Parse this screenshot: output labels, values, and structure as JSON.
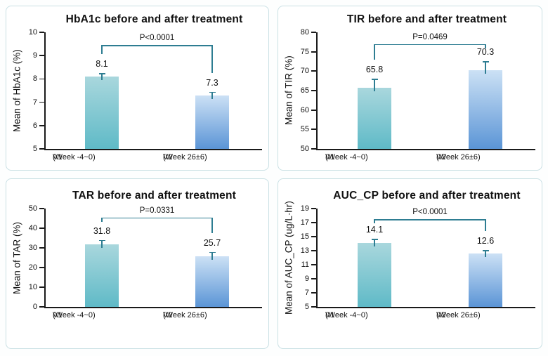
{
  "page": {
    "background": "#fdfefe"
  },
  "colors": {
    "bar_v1_gradient_top": "#a9d7dd",
    "bar_v1_gradient_bottom": "#5fbac7",
    "bar_v2_gradient_top": "#cce1f5",
    "bar_v2_gradient_bottom": "#5b95d6",
    "error_bar": "#2e7d92",
    "bracket": "#2e7d92",
    "axis": "#1a1a1a",
    "panel_border": "#c9e0e4",
    "panel_background": "#ffffff",
    "title_text": "#111111"
  },
  "categories": [
    {
      "label": "V1",
      "sublabel": "(Week -4~0)"
    },
    {
      "label": "V2",
      "sublabel": "(Week 26±6)"
    }
  ],
  "chart_data": [
    {
      "type": "bar",
      "title": "HbA1c before and after treatment",
      "ylabel": "Mean of HbA1c (%)",
      "ylim": [
        5,
        10
      ],
      "yticks": [
        5,
        6,
        7,
        8,
        9,
        10
      ],
      "categories": [
        "V1 (Week -4~0)",
        "V2 (Week 26±6)"
      ],
      "values": [
        8.1,
        7.3
      ],
      "value_labels": [
        "8.1",
        "7.3"
      ],
      "errors": [
        0.15,
        0.15
      ],
      "p_value": "P<0.0001",
      "bracket_y": 9.45,
      "grid": false,
      "legend": false
    },
    {
      "type": "bar",
      "title": "TIR before and after treatment",
      "ylabel": "Mean of TIR (%)",
      "ylim": [
        50,
        80
      ],
      "yticks": [
        50,
        55,
        60,
        65,
        70,
        75,
        80
      ],
      "categories": [
        "V1 (Week -4~0)",
        "V2 (Week 26±6)"
      ],
      "values": [
        65.8,
        70.3
      ],
      "value_labels": [
        "65.8",
        "70.3"
      ],
      "errors": [
        2.2,
        2.3
      ],
      "p_value": "P=0.0469",
      "bracket_y": 77,
      "grid": false,
      "legend": false
    },
    {
      "type": "bar",
      "title": "TAR before and after treatment",
      "ylabel": "Mean of TAR (%)",
      "ylim": [
        0,
        50
      ],
      "yticks": [
        0,
        10,
        20,
        30,
        40,
        50
      ],
      "categories": [
        "V1 (Week -4~0)",
        "V2 (Week 26±6)"
      ],
      "values": [
        31.8,
        25.7
      ],
      "value_labels": [
        "31.8",
        "25.7"
      ],
      "errors": [
        2.2,
        2.3
      ],
      "p_value": "P=0.0331",
      "bracket_y": 45.5,
      "grid": false,
      "legend": false
    },
    {
      "type": "bar",
      "title": "AUC_CP before and after treatment",
      "ylabel": "Mean of AUC_CP (ug/L·hr)",
      "ylim": [
        5,
        19
      ],
      "yticks": [
        5,
        7,
        9,
        11,
        13,
        15,
        17,
        19
      ],
      "categories": [
        "V1 (Week -4~0)",
        "V2 (Week 26±6)"
      ],
      "values": [
        14.1,
        12.6
      ],
      "value_labels": [
        "14.1",
        "12.6"
      ],
      "errors": [
        0.6,
        0.5
      ],
      "p_value": "P<0.0001",
      "bracket_y": 17.5,
      "grid": false,
      "legend": false
    }
  ]
}
